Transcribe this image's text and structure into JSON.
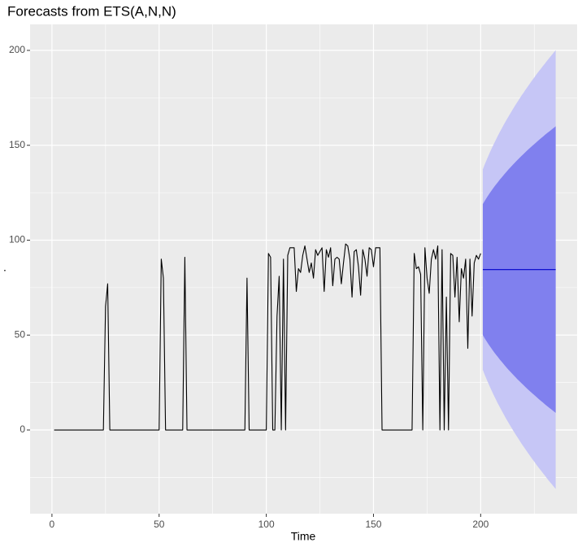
{
  "chart_data": {
    "type": "line",
    "title": "Forecasts from ETS(A,N,N)",
    "xlabel": "Time",
    "ylabel": ".",
    "xlim": [
      -10.2,
      245
    ],
    "ylim": [
      -44.1,
      213.7
    ],
    "xticks": [
      0,
      50,
      100,
      150,
      200
    ],
    "yticks": [
      0,
      50,
      100,
      150,
      200
    ],
    "xminorticks": [
      25,
      75,
      125,
      175,
      225
    ],
    "yminorticks": [
      -25,
      25,
      75,
      125,
      175
    ],
    "grid": true,
    "series": [
      {
        "color": "#000000",
        "x": [
          1,
          2,
          3,
          4,
          5,
          6,
          7,
          8,
          9,
          10,
          11,
          12,
          13,
          14,
          15,
          16,
          17,
          18,
          19,
          20,
          21,
          22,
          23,
          24,
          25,
          26,
          27,
          28,
          29,
          30,
          31,
          32,
          33,
          34,
          35,
          36,
          37,
          38,
          39,
          40,
          41,
          42,
          43,
          44,
          45,
          46,
          47,
          48,
          49,
          50,
          51,
          52,
          53,
          54,
          55,
          56,
          57,
          58,
          59,
          60,
          61,
          62,
          63,
          64,
          65,
          66,
          67,
          68,
          69,
          70,
          71,
          72,
          73,
          74,
          75,
          76,
          77,
          78,
          79,
          80,
          81,
          82,
          83,
          84,
          85,
          86,
          87,
          88,
          89,
          90,
          91,
          92,
          93,
          94,
          95,
          96,
          97,
          98,
          99,
          100,
          101,
          102,
          103,
          104,
          105,
          106,
          107,
          108,
          109,
          110,
          111,
          112,
          113,
          114,
          115,
          116,
          117,
          118,
          119,
          120,
          121,
          122,
          123,
          124,
          125,
          126,
          127,
          128,
          129,
          130,
          131,
          132,
          133,
          134,
          135,
          136,
          137,
          138,
          139,
          140,
          141,
          142,
          143,
          144,
          145,
          146,
          147,
          148,
          149,
          150,
          151,
          152,
          153,
          154,
          155,
          156,
          157,
          158,
          159,
          160,
          161,
          162,
          163,
          164,
          165,
          166,
          167,
          168,
          169,
          170,
          171,
          172,
          173,
          174,
          175,
          176,
          177,
          178,
          179,
          180,
          181,
          182,
          183,
          184,
          185,
          186,
          187,
          188,
          189,
          190,
          191,
          192,
          193,
          194,
          195,
          196,
          197,
          198,
          199,
          200
        ],
        "values": [
          0,
          0,
          0,
          0,
          0,
          0,
          0,
          0,
          0,
          0,
          0,
          0,
          0,
          0,
          0,
          0,
          0,
          0,
          0,
          0,
          0,
          0,
          0,
          0,
          65,
          77,
          0,
          0,
          0,
          0,
          0,
          0,
          0,
          0,
          0,
          0,
          0,
          0,
          0,
          0,
          0,
          0,
          0,
          0,
          0,
          0,
          0,
          0,
          0,
          0,
          90,
          80,
          0,
          0,
          0,
          0,
          0,
          0,
          0,
          0,
          0,
          91,
          0,
          0,
          0,
          0,
          0,
          0,
          0,
          0,
          0,
          0,
          0,
          0,
          0,
          0,
          0,
          0,
          0,
          0,
          0,
          0,
          0,
          0,
          0,
          0,
          0,
          0,
          0,
          0,
          80,
          0,
          0,
          0,
          0,
          0,
          0,
          0,
          0,
          0,
          93,
          91,
          0,
          0,
          60,
          81,
          0,
          90,
          0,
          92,
          96,
          96,
          96,
          73,
          85,
          83,
          92,
          97,
          90,
          83,
          88,
          80,
          95,
          92,
          94,
          96,
          73,
          95,
          91,
          96,
          76,
          90,
          91,
          90,
          77,
          88,
          98,
          97,
          90,
          70,
          94,
          95,
          86,
          71,
          95,
          90,
          81,
          96,
          95,
          86,
          96,
          96,
          96,
          0,
          0,
          0,
          0,
          0,
          0,
          0,
          0,
          0,
          0,
          0,
          0,
          0,
          0,
          0,
          93,
          85,
          86,
          82,
          0,
          96,
          80,
          72,
          90,
          95,
          90,
          97,
          0,
          95,
          0,
          70,
          0,
          93,
          92,
          70,
          91,
          57,
          85,
          80,
          90,
          43,
          90,
          60,
          88,
          92,
          90,
          93
        ]
      }
    ],
    "forecast": {
      "color": "#0000cc",
      "color_80": "#8080ee",
      "color_95": "#c6c6f6",
      "x": [
        201,
        202,
        203,
        204,
        205,
        206,
        207,
        208,
        209,
        210,
        211,
        212,
        213,
        214,
        215,
        216,
        217,
        218,
        219,
        220,
        221,
        222,
        223,
        224,
        225,
        226,
        227,
        228,
        229,
        230,
        231,
        232,
        233,
        234,
        235
      ],
      "mean": [
        84.5,
        84.5,
        84.5,
        84.5,
        84.5,
        84.5,
        84.5,
        84.5,
        84.5,
        84.5,
        84.5,
        84.5,
        84.5,
        84.5,
        84.5,
        84.5,
        84.5,
        84.5,
        84.5,
        84.5,
        84.5,
        84.5,
        84.5,
        84.5,
        84.5,
        84.5,
        84.5,
        84.5,
        84.5,
        84.5,
        84.5,
        84.5,
        84.5,
        84.5,
        84.5
      ],
      "lower_80": [
        50.0,
        48.1,
        46.3,
        44.6,
        43.0,
        41.4,
        39.9,
        38.5,
        37.0,
        35.7,
        34.3,
        33.0,
        31.7,
        30.5,
        29.3,
        28.1,
        26.9,
        25.8,
        24.7,
        23.6,
        22.5,
        21.4,
        20.4,
        19.4,
        18.4,
        17.4,
        16.4,
        15.4,
        14.5,
        13.5,
        12.6,
        11.7,
        10.8,
        9.9,
        9.0
      ],
      "upper_80": [
        119.0,
        120.9,
        122.7,
        124.4,
        126.0,
        127.6,
        129.1,
        130.5,
        132.0,
        133.3,
        134.7,
        136.0,
        137.3,
        138.5,
        139.7,
        140.9,
        142.1,
        143.2,
        144.3,
        145.4,
        146.5,
        147.6,
        148.6,
        149.6,
        150.6,
        151.6,
        152.6,
        153.6,
        154.5,
        155.5,
        156.4,
        157.3,
        158.2,
        159.1,
        160.0
      ],
      "lower_95": [
        31.7,
        28.8,
        26.1,
        23.5,
        21.0,
        18.6,
        16.3,
        14.0,
        11.9,
        9.8,
        7.7,
        5.7,
        3.8,
        1.9,
        0.0,
        -1.8,
        -3.6,
        -5.3,
        -7.1,
        -8.7,
        -10.4,
        -12.0,
        -13.6,
        -15.2,
        -16.7,
        -18.3,
        -19.8,
        -21.2,
        -22.7,
        -24.1,
        -25.6,
        -27.0,
        -28.3,
        -29.7,
        -31.1
      ],
      "upper_95": [
        137.3,
        140.2,
        142.9,
        145.5,
        148.0,
        150.4,
        152.7,
        155.0,
        157.1,
        159.2,
        161.3,
        163.3,
        165.2,
        167.1,
        169.0,
        170.8,
        172.6,
        174.3,
        176.1,
        177.7,
        179.4,
        181.0,
        182.6,
        184.2,
        185.7,
        187.3,
        188.8,
        190.2,
        191.7,
        193.1,
        194.6,
        196.0,
        197.3,
        198.7,
        200.1
      ]
    }
  }
}
